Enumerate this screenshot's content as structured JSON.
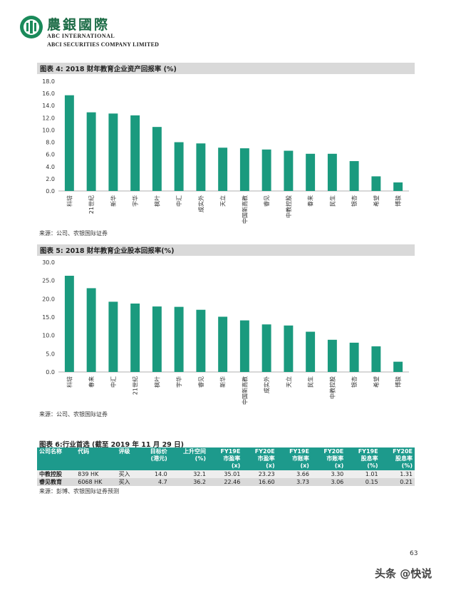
{
  "header": {
    "brand_cn": "農銀國際",
    "brand_en_1": "ABC INTERNATIONAL",
    "brand_en_2": "ABCI SECURITIES COMPANY LIMITED"
  },
  "charts": {
    "chart4": {
      "title": "图表 4: 2018 财年教育企业资产回报率 (%)",
      "source": "来源：公司、农银国际证券"
    },
    "chart5": {
      "title": "图表 5: 2018 财年教育企业股本回报率(%)",
      "source": "来源：公司、农银国际证券"
    }
  },
  "chart_data": [
    {
      "type": "bar",
      "title": "图表 4: 2018 财年教育企业资产回报率 (%)",
      "categories": [
        "科培",
        "21世纪",
        "新华",
        "宇华",
        "枫叶",
        "中汇",
        "成实外",
        "天立",
        "中国新高教",
        "睿见",
        "中教控股",
        "春来",
        "民生",
        "银杏",
        "希望",
        "博骏"
      ],
      "values": [
        15.7,
        12.9,
        12.7,
        12.4,
        10.5,
        8.0,
        7.8,
        7.1,
        7.0,
        6.8,
        6.6,
        6.1,
        6.1,
        4.9,
        2.4,
        1.4
      ],
      "ylim": [
        0,
        18
      ],
      "yticks": [
        "0.0",
        "2.0",
        "4.0",
        "6.0",
        "8.0",
        "10.0",
        "12.0",
        "14.0",
        "16.0",
        "18.0"
      ],
      "color": "#1a9a7e",
      "xlabel": "",
      "ylabel": ""
    },
    {
      "type": "bar",
      "title": "图表 5: 2018 财年教育企业股本回报率(%)",
      "categories": [
        "科培",
        "春来",
        "中汇",
        "21世纪",
        "枫叶",
        "宇华",
        "睿见",
        "新华",
        "中国新高教",
        "成实外",
        "天立",
        "民生",
        "中教控股",
        "银杏",
        "希望",
        "博骏"
      ],
      "values": [
        26.3,
        22.9,
        19.2,
        18.7,
        17.9,
        17.8,
        17.0,
        15.1,
        14.1,
        13.0,
        12.7,
        11.0,
        8.8,
        8.0,
        7.0,
        2.8
      ],
      "ylim": [
        0,
        30
      ],
      "yticks": [
        "0.0",
        "5.0",
        "10.0",
        "15.0",
        "20.0",
        "25.0",
        "30.0"
      ],
      "color": "#1a9a7e",
      "xlabel": "",
      "ylabel": ""
    }
  ],
  "table": {
    "title": "图表 6:行业首选 (截至 2019 年 11 月 29 日)",
    "headers": [
      [
        "公司名称",
        ""
      ],
      [
        "代码",
        ""
      ],
      [
        "评级",
        ""
      ],
      [
        "目标价",
        "(港元)"
      ],
      [
        "上升空间",
        "(%)"
      ],
      [
        "FY19E",
        "市盈率",
        "(x)"
      ],
      [
        "FY20E",
        "市盈率",
        "(x)"
      ],
      [
        "FY19E",
        "市账率",
        "(x)"
      ],
      [
        "FY20E",
        "市账率",
        "(x)"
      ],
      [
        "FY19E",
        "股息率",
        "(%)"
      ],
      [
        "FY20E",
        "股息率",
        "(%)"
      ]
    ],
    "rows": [
      [
        "中教控股",
        "839 HK",
        "买入",
        "14.0",
        "32.1",
        "35.01",
        "23.23",
        "3.66",
        "3.30",
        "1.01",
        "1.31"
      ],
      [
        "睿见教育",
        "6068 HK",
        "买入",
        "4.7",
        "36.2",
        "22.46",
        "16.60",
        "3.73",
        "3.06",
        "0.15",
        "0.21"
      ]
    ],
    "source": "来源：彭博、农银国际证券预测"
  },
  "footer": {
    "page_number": "63",
    "watermark": "头条 @快说"
  },
  "colors": {
    "bar": "#1a9a7e",
    "table_header": "#1d9a8c",
    "title_bar": "#d9d9d9",
    "brand_green": "#1b6b45"
  }
}
